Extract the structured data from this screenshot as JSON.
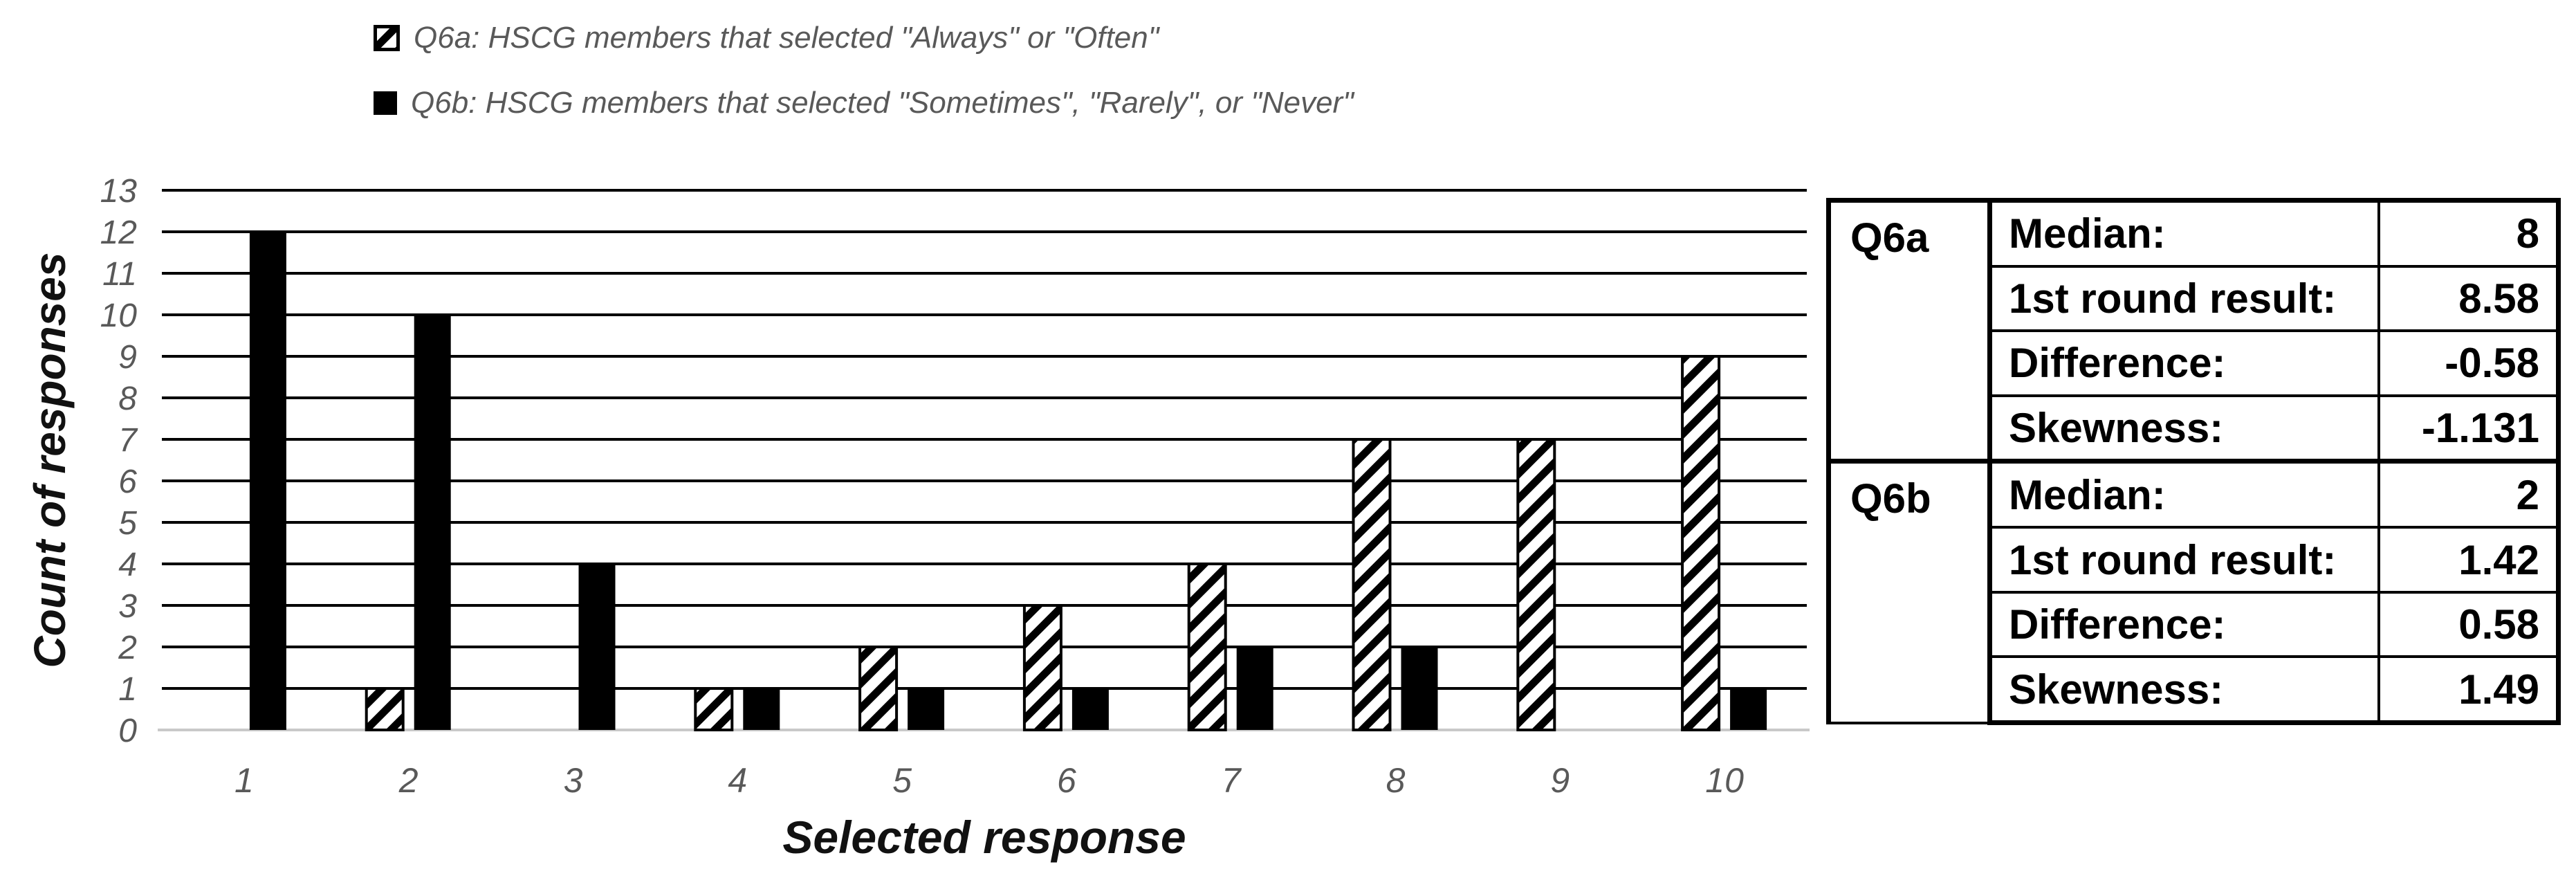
{
  "legend": {
    "items": [
      {
        "series": "Q6a",
        "marker": "diagonal-hatch-square",
        "label": "Q6a: HSCG members that selected \"Always\" or \"Often\""
      },
      {
        "series": "Q6b",
        "marker": "solid-black-square",
        "label": "Q6b: HSCG members that selected \"Sometimes\", \"Rarely\", or \"Never\""
      }
    ]
  },
  "chart_data": {
    "type": "bar",
    "categories": [
      "1",
      "2",
      "3",
      "4",
      "5",
      "6",
      "7",
      "8",
      "9",
      "10"
    ],
    "series": [
      {
        "name": "Q6a: HSCG members that selected \"Always\" or \"Often\"",
        "style": "diagonal-hatch",
        "values": [
          0,
          1,
          0,
          1,
          2,
          3,
          4,
          7,
          7,
          9
        ]
      },
      {
        "name": "Q6b: HSCG members that selected \"Sometimes\", \"Rarely\", or \"Never\"",
        "style": "solid-black",
        "values": [
          12,
          10,
          4,
          1,
          1,
          1,
          2,
          2,
          0,
          1
        ]
      }
    ],
    "title": "",
    "xlabel": "Selected response",
    "ylabel": "Count of responses",
    "ylim": [
      0,
      13
    ],
    "ytick_step": 1,
    "grid": "horizontal-only",
    "legend_position": "top-left"
  },
  "stats_table": {
    "blocks": [
      {
        "label": "Q6a",
        "rows": [
          {
            "stat": "Median:",
            "value": "8"
          },
          {
            "stat": "1st round result:",
            "value": "8.58"
          },
          {
            "stat": "Difference:",
            "value": "-0.58"
          },
          {
            "stat": "Skewness:",
            "value": "-1.131"
          }
        ]
      },
      {
        "label": "Q6b",
        "rows": [
          {
            "stat": "Median:",
            "value": "2"
          },
          {
            "stat": "1st round result:",
            "value": "1.42"
          },
          {
            "stat": "Difference:",
            "value": "0.58"
          },
          {
            "stat": "Skewness:",
            "value": "1.49"
          }
        ]
      }
    ]
  },
  "colors": {
    "bar_solid": "#000000",
    "bar_hatch_stroke": "#000000",
    "bar_hatch_bg": "#ffffff",
    "gridline": "#000000",
    "baseline": "#c9c9c9",
    "tick_text": "#595959",
    "legend_text": "#595959",
    "axis_title_text": "#111111",
    "table_border": "#000000",
    "background": "#ffffff"
  }
}
